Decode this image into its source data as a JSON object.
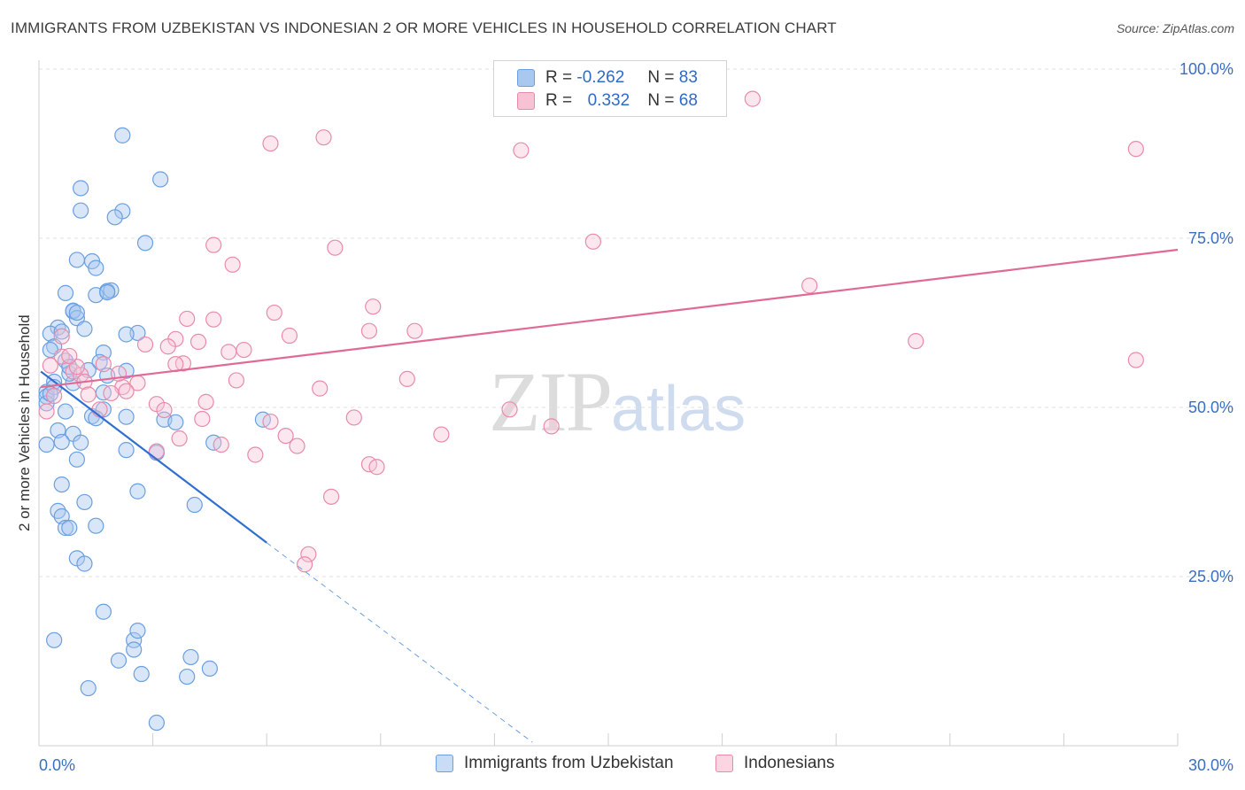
{
  "title": "IMMIGRANTS FROM UZBEKISTAN VS INDONESIAN 2 OR MORE VEHICLES IN HOUSEHOLD CORRELATION CHART",
  "source": "Source: ZipAtlas.com",
  "watermark": {
    "zip": "ZIP",
    "atlas": "atlas"
  },
  "stats": [
    {
      "r_label": "R =",
      "r_value": "-0.262",
      "n_label": "N =",
      "n_value": "83",
      "color": "#a9c8f0",
      "border": "#6a9fe0"
    },
    {
      "r_label": "R =",
      "r_value": "0.332",
      "n_label": "N =",
      "n_value": "68",
      "color": "#f7c3d4",
      "border": "#e98aab"
    }
  ],
  "legend": [
    {
      "label": "Immigrants from Uzbekistan",
      "color": "#a9c8f0",
      "border": "#6a9fe0"
    },
    {
      "label": "Indonesians",
      "color": "#f7c3d4",
      "border": "#e98aab"
    }
  ],
  "chart_data": {
    "type": "scatter",
    "title": "IMMIGRANTS FROM UZBEKISTAN VS INDONESIAN 2 OR MORE VEHICLES IN HOUSEHOLD CORRELATION CHART",
    "xlabel": "",
    "ylabel": "2 or more Vehicles in Household",
    "xlim": [
      0,
      30
    ],
    "ylim": [
      0,
      100
    ],
    "x_tick_labels": [
      "0.0%",
      "30.0%"
    ],
    "y_tick_labels": [
      "25.0%",
      "50.0%",
      "75.0%",
      "100.0%"
    ],
    "y_ticks": [
      25,
      50,
      75,
      100
    ],
    "grid": true,
    "legend_position": "bottom-center",
    "series": [
      {
        "name": "Immigrants from Uzbekistan",
        "color": "#6a9fe0",
        "trend": {
          "x": [
            0.05,
            6.0
          ],
          "y": [
            55.3,
            30.0
          ],
          "dashed_to": [
            13.0,
            0.5
          ]
        },
        "points": [
          [
            2.2,
            90.2
          ],
          [
            3.2,
            83.7
          ],
          [
            1.1,
            82.4
          ],
          [
            1.1,
            79.1
          ],
          [
            2.2,
            79.0
          ],
          [
            2.0,
            78.1
          ],
          [
            2.8,
            74.3
          ],
          [
            1.0,
            71.8
          ],
          [
            1.4,
            71.6
          ],
          [
            1.5,
            70.6
          ],
          [
            1.8,
            67.2
          ],
          [
            1.9,
            67.3
          ],
          [
            0.7,
            66.9
          ],
          [
            1.5,
            66.6
          ],
          [
            0.9,
            64.2
          ],
          [
            0.9,
            64.3
          ],
          [
            1.0,
            63.2
          ],
          [
            0.5,
            61.8
          ],
          [
            1.2,
            61.6
          ],
          [
            0.3,
            60.9
          ],
          [
            0.6,
            61.2
          ],
          [
            2.6,
            61.0
          ],
          [
            0.4,
            59.0
          ],
          [
            0.3,
            58.5
          ],
          [
            1.7,
            58.1
          ],
          [
            1.6,
            56.7
          ],
          [
            0.7,
            56.9
          ],
          [
            2.3,
            55.4
          ],
          [
            1.8,
            54.7
          ],
          [
            0.4,
            53.8
          ],
          [
            0.9,
            53.6
          ],
          [
            0.2,
            52.3
          ],
          [
            0.2,
            51.6
          ],
          [
            0.2,
            50.6
          ],
          [
            1.7,
            49.7
          ],
          [
            0.7,
            49.4
          ],
          [
            2.3,
            48.6
          ],
          [
            1.4,
            48.7
          ],
          [
            1.5,
            48.4
          ],
          [
            3.3,
            48.2
          ],
          [
            3.6,
            47.8
          ],
          [
            5.9,
            48.2
          ],
          [
            0.5,
            46.6
          ],
          [
            0.9,
            46.1
          ],
          [
            1.1,
            44.8
          ],
          [
            0.6,
            44.9
          ],
          [
            0.2,
            44.5
          ],
          [
            4.6,
            44.8
          ],
          [
            2.3,
            43.7
          ],
          [
            3.1,
            43.3
          ],
          [
            1.0,
            42.3
          ],
          [
            0.6,
            38.6
          ],
          [
            2.6,
            37.6
          ],
          [
            1.2,
            36.0
          ],
          [
            4.1,
            35.6
          ],
          [
            0.5,
            34.7
          ],
          [
            0.6,
            33.9
          ],
          [
            0.7,
            32.2
          ],
          [
            0.8,
            32.2
          ],
          [
            1.5,
            32.5
          ],
          [
            1.0,
            27.7
          ],
          [
            1.2,
            26.9
          ],
          [
            1.7,
            19.8
          ],
          [
            0.4,
            15.6
          ],
          [
            2.5,
            15.6
          ],
          [
            2.6,
            17.0
          ],
          [
            2.5,
            14.2
          ],
          [
            2.1,
            12.6
          ],
          [
            4.0,
            13.1
          ],
          [
            4.5,
            11.4
          ],
          [
            2.7,
            10.6
          ],
          [
            3.9,
            10.2
          ],
          [
            1.3,
            8.5
          ],
          [
            3.1,
            3.4
          ],
          [
            2.3,
            60.8
          ],
          [
            0.8,
            55.0
          ],
          [
            0.4,
            53.0
          ],
          [
            1.0,
            64.0
          ],
          [
            1.8,
            67.0
          ],
          [
            0.8,
            56.0
          ],
          [
            0.3,
            52.0
          ],
          [
            1.3,
            55.5
          ],
          [
            1.7,
            52.2
          ]
        ]
      },
      {
        "name": "Indonesians",
        "color": "#e98aab",
        "trend": {
          "x": [
            0.05,
            30.0
          ],
          "y": [
            53.0,
            73.3
          ]
        },
        "points": [
          [
            18.8,
            95.6
          ],
          [
            7.5,
            89.9
          ],
          [
            6.1,
            89.0
          ],
          [
            12.7,
            88.0
          ],
          [
            28.9,
            88.2
          ],
          [
            4.6,
            74.0
          ],
          [
            7.8,
            73.6
          ],
          [
            14.6,
            74.5
          ],
          [
            5.1,
            71.1
          ],
          [
            20.3,
            68.0
          ],
          [
            8.8,
            64.9
          ],
          [
            6.2,
            64.0
          ],
          [
            3.9,
            63.1
          ],
          [
            4.6,
            63.0
          ],
          [
            8.7,
            61.3
          ],
          [
            9.9,
            61.3
          ],
          [
            6.6,
            60.6
          ],
          [
            3.6,
            60.1
          ],
          [
            0.6,
            60.5
          ],
          [
            4.2,
            59.7
          ],
          [
            2.8,
            59.3
          ],
          [
            3.4,
            59.0
          ],
          [
            5.4,
            58.5
          ],
          [
            5.0,
            58.2
          ],
          [
            23.1,
            59.8
          ],
          [
            28.9,
            57.0
          ],
          [
            0.6,
            57.5
          ],
          [
            3.8,
            56.5
          ],
          [
            0.3,
            56.2
          ],
          [
            1.7,
            56.4
          ],
          [
            0.9,
            55.3
          ],
          [
            1.1,
            54.8
          ],
          [
            5.2,
            54.0
          ],
          [
            9.7,
            54.2
          ],
          [
            1.2,
            53.8
          ],
          [
            2.6,
            53.6
          ],
          [
            2.2,
            53.0
          ],
          [
            2.3,
            52.4
          ],
          [
            7.4,
            52.8
          ],
          [
            1.9,
            52.1
          ],
          [
            1.3,
            51.9
          ],
          [
            0.4,
            51.7
          ],
          [
            4.4,
            50.8
          ],
          [
            3.1,
            50.5
          ],
          [
            3.3,
            49.6
          ],
          [
            1.6,
            49.7
          ],
          [
            0.2,
            49.4
          ],
          [
            12.4,
            49.7
          ],
          [
            8.3,
            48.5
          ],
          [
            6.1,
            47.9
          ],
          [
            4.3,
            48.3
          ],
          [
            13.5,
            47.2
          ],
          [
            10.6,
            46.0
          ],
          [
            6.5,
            45.8
          ],
          [
            3.7,
            45.4
          ],
          [
            4.8,
            44.5
          ],
          [
            6.8,
            44.3
          ],
          [
            3.1,
            43.5
          ],
          [
            5.7,
            43.0
          ],
          [
            8.7,
            41.6
          ],
          [
            8.9,
            41.2
          ],
          [
            7.7,
            36.8
          ],
          [
            7.1,
            28.3
          ],
          [
            7.0,
            26.8
          ],
          [
            1.0,
            56.0
          ],
          [
            2.1,
            55.0
          ],
          [
            0.8,
            57.6
          ],
          [
            3.6,
            56.4
          ]
        ]
      }
    ]
  }
}
